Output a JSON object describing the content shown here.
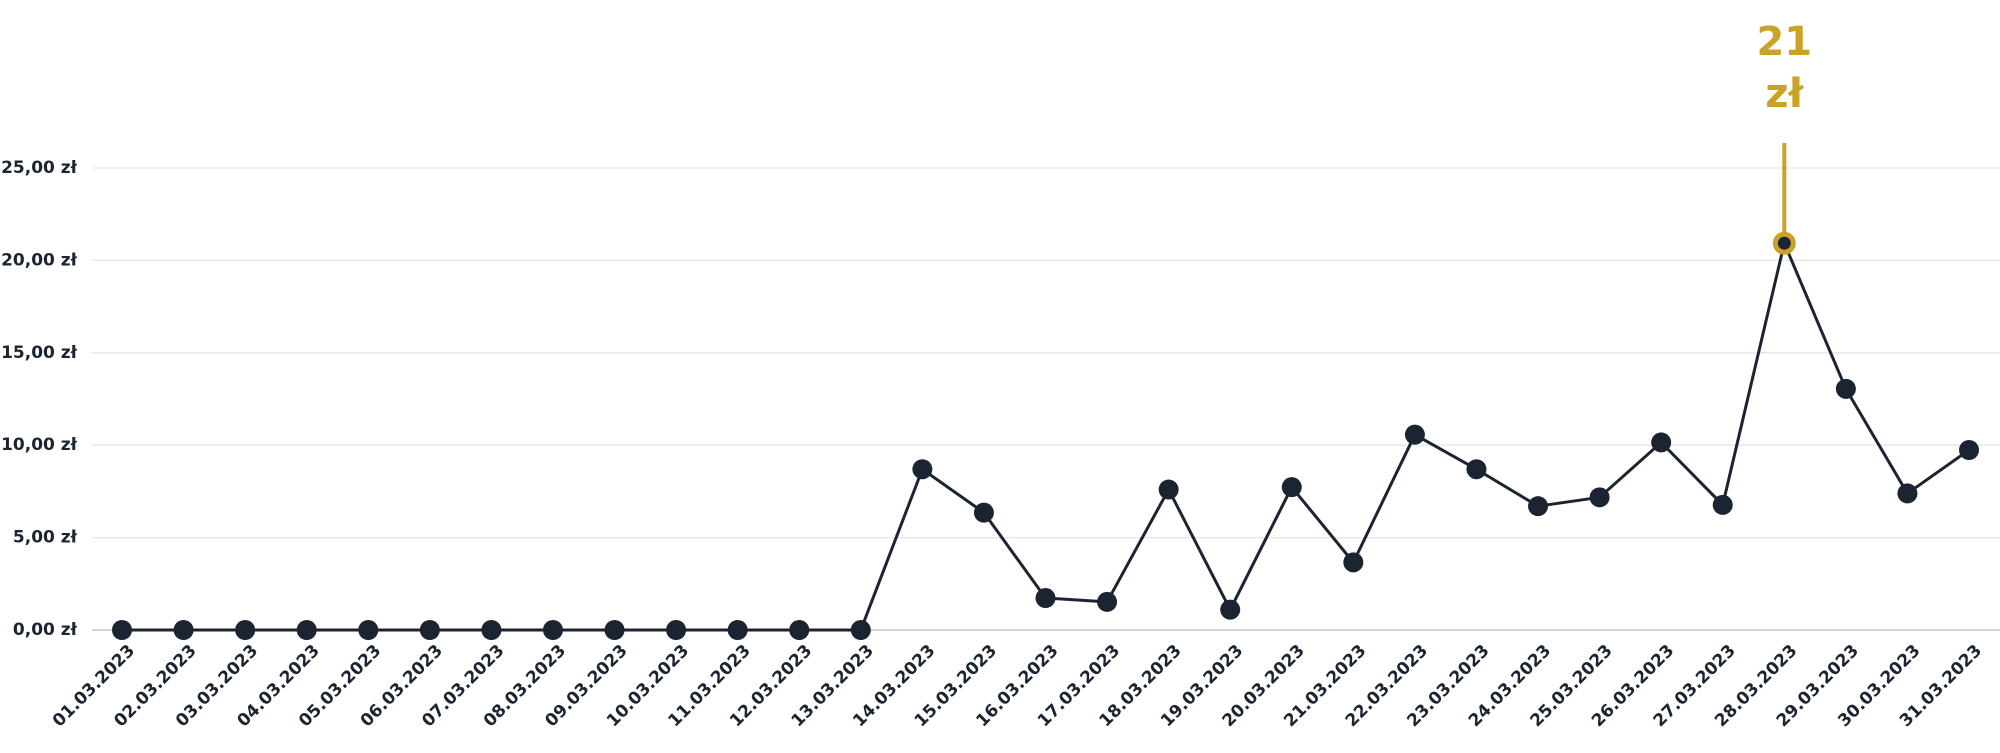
{
  "chart_data": {
    "type": "line",
    "categories": [
      "01.03.2023",
      "02.03.2023",
      "03.03.2023",
      "04.03.2023",
      "05.03.2023",
      "06.03.2023",
      "07.03.2023",
      "08.03.2023",
      "09.03.2023",
      "10.03.2023",
      "11.03.2023",
      "12.03.2023",
      "13.03.2023",
      "14.03.2023",
      "15.03.2023",
      "16.03.2023",
      "17.03.2023",
      "18.03.2023",
      "19.03.2023",
      "20.03.2023",
      "21.03.2023",
      "22.03.2023",
      "23.03.2023",
      "24.03.2023",
      "25.03.2023",
      "26.03.2023",
      "27.03.2023",
      "28.03.2023",
      "29.03.2023",
      "30.03.2023",
      "31.03.2023"
    ],
    "values": [
      0,
      0,
      0,
      0,
      0,
      0,
      0,
      0,
      0,
      0,
      0,
      0,
      0,
      8.7,
      6.35,
      1.73,
      1.52,
      7.6,
      1.1,
      7.73,
      3.66,
      10.57,
      8.7,
      6.7,
      7.18,
      10.15,
      6.77,
      20.93,
      13.05,
      7.39,
      9.74
    ],
    "color": "#1b2430",
    "highlight": {
      "index": 27,
      "label": "21 zł",
      "color": "#c9a227"
    },
    "ylim": [
      0,
      25
    ],
    "yticks": [
      {
        "value": 0,
        "label": "0,00 zł"
      },
      {
        "value": 5,
        "label": "5,00 zł"
      },
      {
        "value": 10,
        "label": "10,00 zł"
      },
      {
        "value": 15,
        "label": "15,00 zł"
      },
      {
        "value": 20,
        "label": "20,00 zł"
      },
      {
        "value": 25,
        "label": "25,00 zł"
      }
    ],
    "grid": true
  }
}
